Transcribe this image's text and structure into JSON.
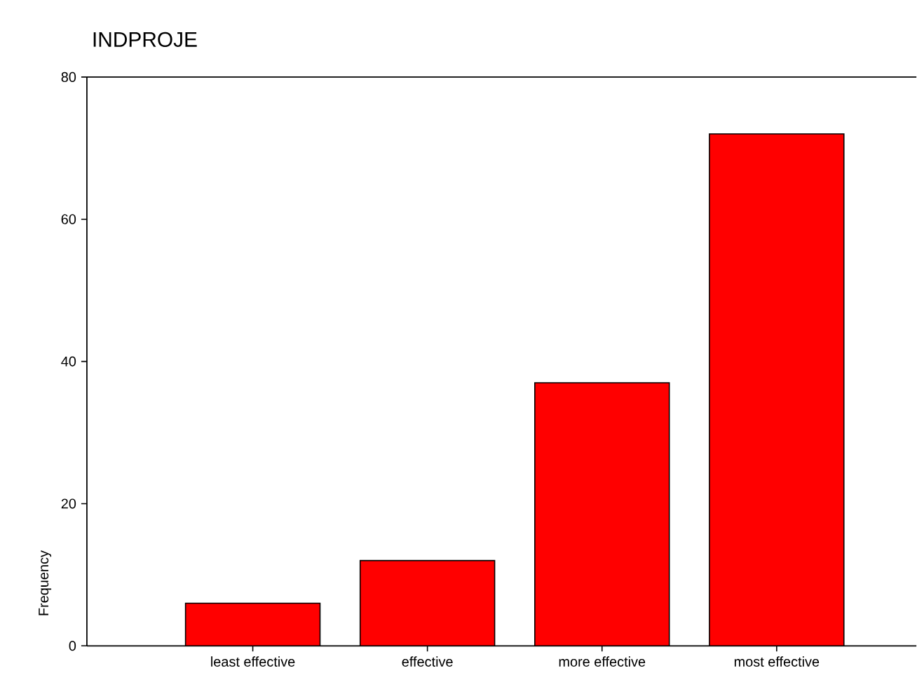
{
  "chart_data": {
    "type": "bar",
    "title": "INDPROJE",
    "ylabel": "Frequency",
    "categories": [
      "least effective",
      "effective",
      "more effective",
      "most effective"
    ],
    "values": [
      6,
      12,
      37,
      72
    ],
    "color": "#ff0000",
    "ylim": [
      0,
      80
    ],
    "yticks": [
      0,
      20,
      40,
      60,
      80
    ]
  }
}
